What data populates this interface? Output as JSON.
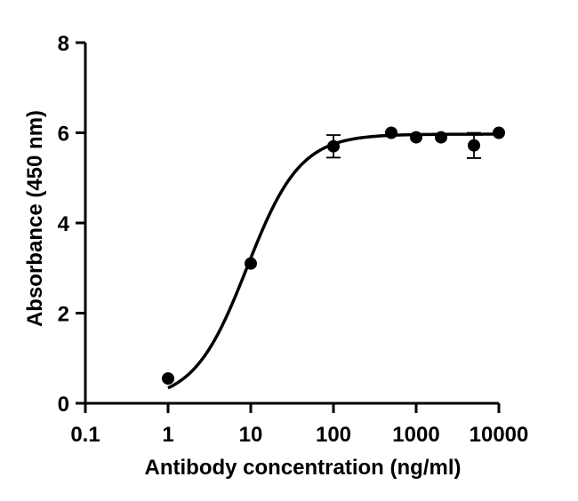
{
  "chart_data": {
    "type": "scatter",
    "title": "",
    "xlabel": "Antibody concentration (ng/ml)",
    "ylabel": "Absorbance (450 nm)",
    "x_scale": "log10",
    "xlim": [
      0.1,
      10000
    ],
    "ylim": [
      0,
      8
    ],
    "x_ticks": [
      0.1,
      1,
      10,
      100,
      1000,
      10000
    ],
    "x_tick_labels": [
      "0.1",
      "1",
      "10",
      "100",
      "1000",
      "10000"
    ],
    "y_ticks": [
      0,
      2,
      4,
      6,
      8
    ],
    "y_tick_labels": [
      "0",
      "2",
      "4",
      "6",
      "8"
    ],
    "grid": false,
    "legend": "none",
    "points": [
      {
        "x": 1,
        "y": 0.55,
        "err": 0
      },
      {
        "x": 10,
        "y": 3.1,
        "err": 0
      },
      {
        "x": 100,
        "y": 5.7,
        "err": 0.25
      },
      {
        "x": 500,
        "y": 6.0,
        "err": 0
      },
      {
        "x": 1000,
        "y": 5.9,
        "err": 0
      },
      {
        "x": 2000,
        "y": 5.9,
        "err": 0
      },
      {
        "x": 5000,
        "y": 5.72,
        "err": 0.28
      },
      {
        "x": 10000,
        "y": 6.0,
        "err": 0
      }
    ],
    "fit_curve": {
      "model": "4PL",
      "bottom": 0.05,
      "top": 5.97,
      "ec50": 9.0,
      "hill": 1.35,
      "x_range": [
        1,
        10000
      ]
    },
    "marker_color": "#000000",
    "line_color": "#000000"
  }
}
